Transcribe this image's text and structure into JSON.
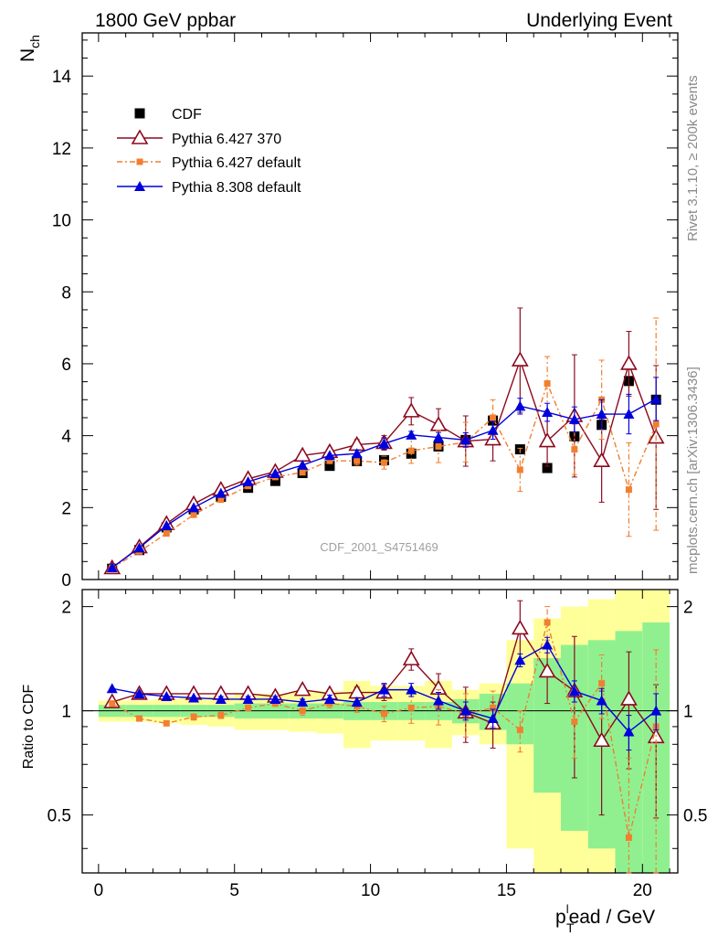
{
  "header": {
    "left_title": "1800 GeV ppbar",
    "right_title": "Underlying Event",
    "watermark": "CDF_2001_S4751469",
    "side_rivet": "Rivet 3.1.10, ≥ 200k events",
    "side_mcplots": "mcplots.cern.ch [arXiv:1306.3436]"
  },
  "colors": {
    "cdf": "#000000",
    "py6_370": "#8b0a1e",
    "py6_default": "#f07f30",
    "py8_default": "#0000dd",
    "band_inner": "#90f090",
    "band_outer": "#ffff99"
  },
  "chart_data": [
    {
      "type": "scatter",
      "panel": "main",
      "ylabel_main": "N",
      "ylabel_sub": "ch",
      "xlim": [
        -0.6,
        21.3
      ],
      "ylim": [
        0,
        15.2
      ],
      "yticks": [
        0,
        2,
        4,
        6,
        8,
        10,
        12,
        14
      ],
      "x": [
        0.5,
        1.5,
        2.5,
        3.5,
        4.5,
        5.5,
        6.5,
        7.5,
        8.5,
        9.5,
        10.5,
        11.5,
        12.5,
        13.5,
        14.5,
        15.5,
        16.5,
        17.5,
        18.5,
        19.5,
        20.5
      ],
      "series": [
        {
          "name": "CDF",
          "style": "cdf",
          "values": [
            0.3,
            0.82,
            1.45,
            1.95,
            2.3,
            2.55,
            2.74,
            2.96,
            3.16,
            3.29,
            3.32,
            3.5,
            3.7,
            3.88,
            4.42,
            3.62,
            3.1,
            3.98,
            4.3,
            5.52,
            5.0
          ]
        },
        {
          "name": "Pythia 6.427 370",
          "style": "py6_370",
          "values": [
            0.32,
            0.9,
            1.55,
            2.1,
            2.5,
            2.8,
            3.0,
            3.45,
            3.55,
            3.75,
            3.8,
            4.68,
            4.3,
            3.85,
            3.9,
            6.1,
            3.85,
            4.55,
            3.3,
            6.0,
            3.95
          ],
          "errors": [
            0.02,
            0.02,
            0.03,
            0.04,
            0.05,
            0.05,
            0.07,
            0.08,
            0.1,
            0.14,
            0.2,
            0.38,
            0.45,
            0.7,
            0.6,
            1.45,
            0.7,
            1.7,
            1.15,
            0.9,
            2.0
          ]
        },
        {
          "name": "Pythia 6.427 default",
          "style": "py6_default",
          "values": [
            0.32,
            0.78,
            1.28,
            1.8,
            2.22,
            2.6,
            2.85,
            2.98,
            3.3,
            3.3,
            3.25,
            3.58,
            3.7,
            3.82,
            4.5,
            3.05,
            5.45,
            3.62,
            5.0,
            2.5,
            4.32
          ],
          "errors": [
            0.02,
            0.02,
            0.03,
            0.04,
            0.05,
            0.05,
            0.06,
            0.08,
            0.09,
            0.12,
            0.18,
            0.35,
            0.45,
            0.55,
            0.5,
            0.6,
            0.75,
            0.7,
            1.1,
            1.3,
            2.95
          ]
        },
        {
          "name": "Pythia 8.308 default",
          "style": "py8_default",
          "values": [
            0.33,
            0.88,
            1.5,
            2.0,
            2.4,
            2.72,
            2.95,
            3.18,
            3.45,
            3.5,
            3.78,
            4.02,
            3.95,
            3.88,
            4.15,
            4.82,
            4.65,
            4.45,
            4.6,
            4.6,
            5.02
          ],
          "errors": [
            0.01,
            0.02,
            0.02,
            0.03,
            0.04,
            0.04,
            0.05,
            0.06,
            0.08,
            0.1,
            0.16,
            0.1,
            0.14,
            0.2,
            0.25,
            0.22,
            0.25,
            0.35,
            0.4,
            0.55,
            0.6
          ]
        }
      ]
    },
    {
      "type": "scatter",
      "panel": "ratio",
      "ylabel": "Ratio to CDF",
      "xlabel_main": "p",
      "xlabel_sub": "T",
      "xlabel_sup": "l",
      "xlabel_rest": "ead / GeV",
      "ylim": [
        0.34,
        2.24
      ],
      "yticks": [
        0.5,
        1,
        2
      ],
      "xticks": [
        0,
        5,
        10,
        15,
        20
      ],
      "band_inner": [
        0.04,
        0.04,
        0.04,
        0.04,
        0.04,
        0.05,
        0.05,
        0.05,
        0.05,
        0.06,
        0.06,
        0.06,
        0.06,
        0.08,
        0.12,
        0.2,
        0.42,
        0.55,
        0.6,
        0.7,
        0.8
      ],
      "band_outer": [
        0.07,
        0.07,
        0.08,
        0.09,
        0.1,
        0.12,
        0.12,
        0.13,
        0.14,
        0.22,
        0.18,
        0.18,
        0.22,
        0.15,
        0.2,
        0.6,
        0.85,
        1.0,
        1.1,
        1.3,
        1.4
      ],
      "series": [
        {
          "name": "Pythia 6.427 370",
          "style": "py6_370",
          "values": [
            1.06,
            1.12,
            1.12,
            1.12,
            1.12,
            1.12,
            1.1,
            1.15,
            1.12,
            1.13,
            1.13,
            1.41,
            1.16,
            0.99,
            0.92,
            1.73,
            1.3,
            1.14,
            0.82,
            1.08,
            0.84
          ],
          "errors": [
            0.01,
            0.01,
            0.01,
            0.02,
            0.02,
            0.02,
            0.03,
            0.03,
            0.03,
            0.04,
            0.06,
            0.1,
            0.12,
            0.18,
            0.14,
            0.35,
            0.25,
            0.5,
            0.32,
            0.4,
            0.35
          ]
        },
        {
          "name": "Pythia 6.427 default",
          "style": "py6_default",
          "values": [
            1.05,
            0.95,
            0.92,
            0.96,
            0.97,
            1.02,
            1.05,
            1.0,
            1.05,
            1.03,
            0.98,
            1.02,
            1.03,
            0.98,
            1.02,
            0.88,
            1.8,
            0.93,
            1.2,
            0.43,
            0.9
          ],
          "errors": [
            0.01,
            0.01,
            0.01,
            0.02,
            0.02,
            0.02,
            0.02,
            0.03,
            0.03,
            0.04,
            0.05,
            0.1,
            0.12,
            0.14,
            0.12,
            0.12,
            0.2,
            0.2,
            0.25,
            0.3,
            0.6
          ]
        },
        {
          "name": "Pythia 8.308 default",
          "style": "py8_default",
          "values": [
            1.16,
            1.12,
            1.1,
            1.09,
            1.08,
            1.08,
            1.08,
            1.06,
            1.08,
            1.06,
            1.15,
            1.15,
            1.07,
            1.0,
            0.95,
            1.4,
            1.55,
            1.14,
            1.07,
            0.87,
            1.0
          ],
          "errors": [
            0.01,
            0.01,
            0.01,
            0.01,
            0.02,
            0.02,
            0.02,
            0.02,
            0.03,
            0.03,
            0.05,
            0.05,
            0.06,
            0.06,
            0.06,
            0.06,
            0.08,
            0.08,
            0.09,
            0.1,
            0.12
          ]
        }
      ]
    }
  ]
}
